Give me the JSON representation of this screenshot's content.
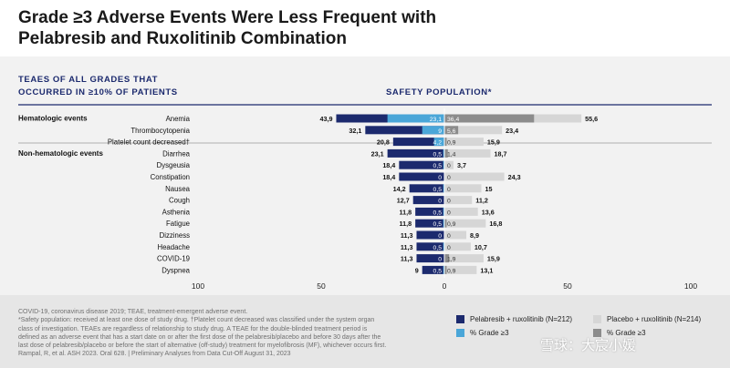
{
  "title_line1": "Grade ≥3 Adverse Events Were Less Frequent with",
  "title_line2": "Pelabresib and Ruxolitinib Combination",
  "colors": {
    "pelabresib_all": "#1c2a6e",
    "pelabresib_g3": "#4aa6d8",
    "placebo_all": "#d6d6d6",
    "placebo_g3": "#8c8c8c"
  },
  "chart_data": {
    "type": "bar",
    "orientation": "horizontal-butterfly",
    "header_left_line1": "TEAES OF ALL GRADES THAT",
    "header_left_line2": "OCCURRED IN ≥10% OF PATIENTS",
    "header_right": "SAFETY POPULATION*",
    "xlim": [
      -100,
      100
    ],
    "ticks": [
      {
        "value": -100,
        "label": "100"
      },
      {
        "value": -50,
        "label": "50"
      },
      {
        "value": 0,
        "label": "0"
      },
      {
        "value": 50,
        "label": "50"
      },
      {
        "value": 100,
        "label": "100"
      }
    ],
    "groups": [
      {
        "name": "Hematologic events",
        "start_index": 0
      },
      {
        "name": "Non-hematologic events",
        "start_index": 3
      }
    ],
    "categories": [
      "Anemia",
      "Thrombocytopenia",
      "Platelet count decreased†",
      "Diarrhea",
      "Dysgeusia",
      "Constipation",
      "Nausea",
      "Cough",
      "Asthenia",
      "Fatigue",
      "Dizziness",
      "Headache",
      "COVID-19",
      "Dyspnea"
    ],
    "series": [
      {
        "name": "Pelabresib + ruxolitinib (N=212)",
        "side": "left",
        "values": [
          43.9,
          32.1,
          20.8,
          23.1,
          18.4,
          18.4,
          14.2,
          12.7,
          11.8,
          11.8,
          11.3,
          11.3,
          11.3,
          9
        ],
        "labels": [
          "43,9",
          "32,1",
          "20,8",
          "23,1",
          "18,4",
          "18,4",
          "14,2",
          "12,7",
          "11,8",
          "11,8",
          "11,3",
          "11,3",
          "11,3",
          "9"
        ]
      },
      {
        "name": "% Grade ≥3",
        "side": "left",
        "overlay_of": 0,
        "values": [
          23.1,
          9,
          4.2,
          0.5,
          0.5,
          0,
          0.5,
          0,
          0.5,
          0.5,
          0,
          0.5,
          0,
          0.5
        ],
        "labels": [
          "23,1",
          "9",
          "4,2",
          "0,5",
          "0,5",
          "0",
          "0,5",
          "0",
          "0,5",
          "0,5",
          "0",
          "0,5",
          "0",
          "0,5"
        ]
      },
      {
        "name": "Placebo + ruxolitinib (N=214)",
        "side": "right",
        "values": [
          55.6,
          23.4,
          15.9,
          18.7,
          3.7,
          24.3,
          15,
          11.2,
          13.6,
          16.8,
          8.9,
          10.7,
          15.9,
          13.1
        ],
        "labels": [
          "55,6",
          "23,4",
          "15,9",
          "18,7",
          "3,7",
          "24,3",
          "15",
          "11,2",
          "13,6",
          "16,8",
          "8,9",
          "10,7",
          "15,9",
          "13,1"
        ]
      },
      {
        "name": "% Grade ≥3",
        "side": "right",
        "overlay_of": 2,
        "values": [
          36.4,
          5.6,
          0.9,
          1.4,
          0,
          0,
          0,
          0,
          0,
          0.9,
          0,
          0,
          1.9,
          0.9
        ],
        "labels": [
          "36,4",
          "5,6",
          "0,9",
          "1,4",
          "0",
          "0",
          "0",
          "0",
          "0",
          "0,9",
          "0",
          "0",
          "1,9",
          "0,9"
        ]
      }
    ]
  },
  "footnotes": [
    "COVID-19, coronavirus disease 2019; TEAE, treatment-emergent adverse event.",
    "*Safety population: received at least one dose of study drug. †Platelet count decreased was classified under the system organ",
    "class of investigation. TEAEs are regardless of relationship to study drug. A TEAE for the double-blinded treatment period is",
    "defined as an adverse event that has a start date on or after the first dose of the pelabresib/placebo and before 30 days after the",
    "last dose of pelabresib/placebo or before the start of alternative (off-study) treatment for myelofibrosis (MF), whichever occurs first.",
    "Rampal, R, et al. ASH 2023. Oral 628.  |  Preliminary Analyses from Data Cut-Off August 31, 2023"
  ],
  "legend": {
    "pelabresib": "Pelabresib + ruxolitinib (N=212)",
    "pelabresib_g3": "% Grade ≥3",
    "placebo": "Placebo + ruxolitinib (N=214)",
    "placebo_g3": "% Grade ≥3"
  },
  "watermark": "雪球：大宸小媛"
}
